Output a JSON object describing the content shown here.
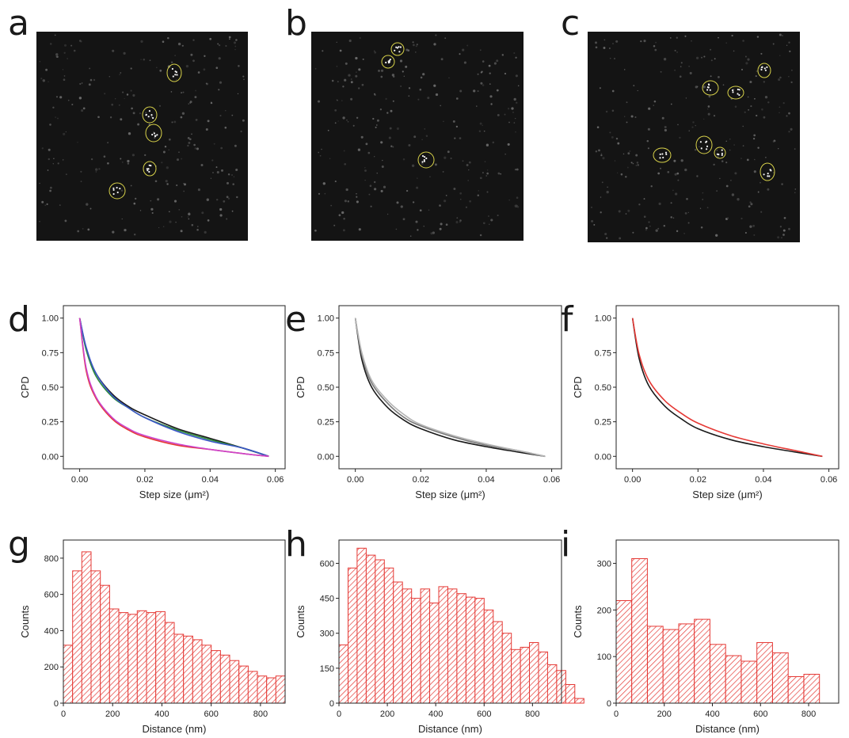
{
  "figure_labels": [
    "a",
    "b",
    "c",
    "d",
    "e",
    "f",
    "g",
    "h",
    "i"
  ],
  "colors": {
    "image_background": "#141414",
    "roi_outline": "#d8d24a",
    "hist_red": "#e53935",
    "black": "#1a1a1a",
    "gray": "#9e9e9e",
    "green": "#2e8b3a",
    "blue": "#3a55c8",
    "red": "#e53935",
    "magenta": "#cc44cc"
  },
  "microscopy_panels": [
    {
      "label": "a",
      "roi_count": 6
    },
    {
      "label": "b",
      "roi_count": 3
    },
    {
      "label": "c",
      "roi_count": 8
    }
  ],
  "chart_data": [
    {
      "panel": "d",
      "type": "line",
      "xlabel": "Step size (μm²)",
      "ylabel": "CPD",
      "xlim": [
        -0.005,
        0.063
      ],
      "ylim": [
        -0.09,
        1.09
      ],
      "xticks": [
        "0.00",
        "0.02",
        "0.04",
        "0.06"
      ],
      "yticks": [
        "0.00",
        "0.25",
        "0.50",
        "0.75",
        "1.00"
      ],
      "series": [
        {
          "color": "#1a1a1a",
          "x": [
            0,
            0.002,
            0.005,
            0.01,
            0.015,
            0.02,
            0.03,
            0.04,
            0.05,
            0.058
          ],
          "y": [
            1.0,
            0.78,
            0.6,
            0.45,
            0.36,
            0.3,
            0.2,
            0.13,
            0.06,
            0.0
          ]
        },
        {
          "color": "#2e8b3a",
          "x": [
            0,
            0.002,
            0.005,
            0.01,
            0.015,
            0.02,
            0.03,
            0.04,
            0.05,
            0.058
          ],
          "y": [
            1.0,
            0.77,
            0.58,
            0.43,
            0.35,
            0.28,
            0.19,
            0.12,
            0.06,
            0.0
          ]
        },
        {
          "color": "#3a55c8",
          "x": [
            0,
            0.002,
            0.005,
            0.01,
            0.015,
            0.02,
            0.03,
            0.04,
            0.05,
            0.058
          ],
          "y": [
            1.0,
            0.79,
            0.6,
            0.44,
            0.35,
            0.28,
            0.18,
            0.11,
            0.06,
            0.0
          ]
        },
        {
          "color": "#e53935",
          "x": [
            0,
            0.002,
            0.005,
            0.01,
            0.015,
            0.02,
            0.03,
            0.04,
            0.05,
            0.058
          ],
          "y": [
            1.0,
            0.62,
            0.42,
            0.27,
            0.19,
            0.14,
            0.08,
            0.05,
            0.02,
            0.0
          ]
        },
        {
          "color": "#cc44cc",
          "x": [
            0,
            0.002,
            0.005,
            0.01,
            0.015,
            0.02,
            0.03,
            0.04,
            0.05,
            0.058
          ],
          "y": [
            1.0,
            0.64,
            0.43,
            0.28,
            0.2,
            0.15,
            0.09,
            0.05,
            0.02,
            0.0
          ]
        }
      ]
    },
    {
      "panel": "e",
      "type": "line",
      "xlabel": "Step size (μm²)",
      "ylabel": "CPD",
      "xlim": [
        -0.005,
        0.063
      ],
      "ylim": [
        -0.09,
        1.09
      ],
      "xticks": [
        "0.00",
        "0.02",
        "0.04",
        "0.06"
      ],
      "yticks": [
        "0.00",
        "0.25",
        "0.50",
        "0.75",
        "1.00"
      ],
      "series": [
        {
          "color": "#1a1a1a",
          "x": [
            0,
            0.002,
            0.005,
            0.01,
            0.015,
            0.02,
            0.03,
            0.04,
            0.05,
            0.058
          ],
          "y": [
            1.0,
            0.7,
            0.5,
            0.35,
            0.26,
            0.2,
            0.12,
            0.07,
            0.03,
            0.0
          ]
        },
        {
          "color": "#7a7a7a",
          "x": [
            0,
            0.002,
            0.005,
            0.01,
            0.015,
            0.02,
            0.03,
            0.04,
            0.05,
            0.058
          ],
          "y": [
            1.0,
            0.73,
            0.53,
            0.38,
            0.28,
            0.22,
            0.14,
            0.08,
            0.04,
            0.0
          ]
        },
        {
          "color": "#b5b5b5",
          "x": [
            0,
            0.002,
            0.005,
            0.01,
            0.015,
            0.02,
            0.03,
            0.04,
            0.05,
            0.058
          ],
          "y": [
            1.0,
            0.75,
            0.55,
            0.4,
            0.3,
            0.23,
            0.15,
            0.09,
            0.04,
            0.0
          ]
        }
      ]
    },
    {
      "panel": "f",
      "type": "line",
      "xlabel": "Step size (μm²)",
      "ylabel": "CPD",
      "xlim": [
        -0.005,
        0.063
      ],
      "ylim": [
        -0.09,
        1.09
      ],
      "xticks": [
        "0.00",
        "0.02",
        "0.04",
        "0.06"
      ],
      "yticks": [
        "0.00",
        "0.25",
        "0.50",
        "0.75",
        "1.00"
      ],
      "series": [
        {
          "color": "#1a1a1a",
          "x": [
            0,
            0.002,
            0.005,
            0.01,
            0.015,
            0.02,
            0.03,
            0.04,
            0.05,
            0.058
          ],
          "y": [
            1.0,
            0.71,
            0.51,
            0.36,
            0.27,
            0.2,
            0.12,
            0.07,
            0.03,
            0.0
          ]
        },
        {
          "color": "#e53935",
          "x": [
            0,
            0.002,
            0.005,
            0.01,
            0.015,
            0.02,
            0.03,
            0.04,
            0.05,
            0.058
          ],
          "y": [
            1.0,
            0.74,
            0.55,
            0.4,
            0.31,
            0.24,
            0.15,
            0.09,
            0.04,
            0.0
          ]
        }
      ]
    },
    {
      "panel": "g",
      "type": "bar",
      "xlabel": "Distance (nm)",
      "ylabel": "Counts",
      "bin_width": 37.5,
      "xlim": [
        0,
        900
      ],
      "ylim": [
        0,
        900
      ],
      "xticks": [
        "0",
        "200",
        "400",
        "600",
        "800"
      ],
      "yticks": [
        "0",
        "200",
        "400",
        "600",
        "800"
      ],
      "values": [
        320,
        730,
        835,
        730,
        650,
        520,
        500,
        490,
        510,
        500,
        505,
        445,
        380,
        370,
        350,
        320,
        290,
        265,
        235,
        205,
        175,
        150,
        140,
        150
      ]
    },
    {
      "panel": "h",
      "type": "bar",
      "xlabel": "Distance (nm)",
      "ylabel": "Counts",
      "bin_width": 37.5,
      "xlim": [
        0,
        920
      ],
      "ylim": [
        0,
        700
      ],
      "xticks": [
        "0",
        "200",
        "400",
        "600",
        "800"
      ],
      "yticks": [
        "0",
        "150",
        "300",
        "450",
        "600"
      ],
      "values": [
        250,
        580,
        665,
        635,
        615,
        580,
        520,
        490,
        450,
        490,
        430,
        500,
        490,
        470,
        455,
        450,
        400,
        350,
        300,
        230,
        240,
        260,
        220,
        165,
        140,
        80,
        20
      ]
    },
    {
      "panel": "i",
      "type": "bar",
      "xlabel": "Distance (nm)",
      "ylabel": "Counts",
      "bin_width": 65,
      "xlim": [
        0,
        925
      ],
      "ylim": [
        0,
        350
      ],
      "xticks": [
        "0",
        "200",
        "400",
        "600",
        "800"
      ],
      "yticks": [
        "0",
        "100",
        "200",
        "300"
      ],
      "values": [
        220,
        310,
        165,
        158,
        170,
        180,
        126,
        102,
        90,
        130,
        108,
        57,
        62
      ]
    }
  ]
}
